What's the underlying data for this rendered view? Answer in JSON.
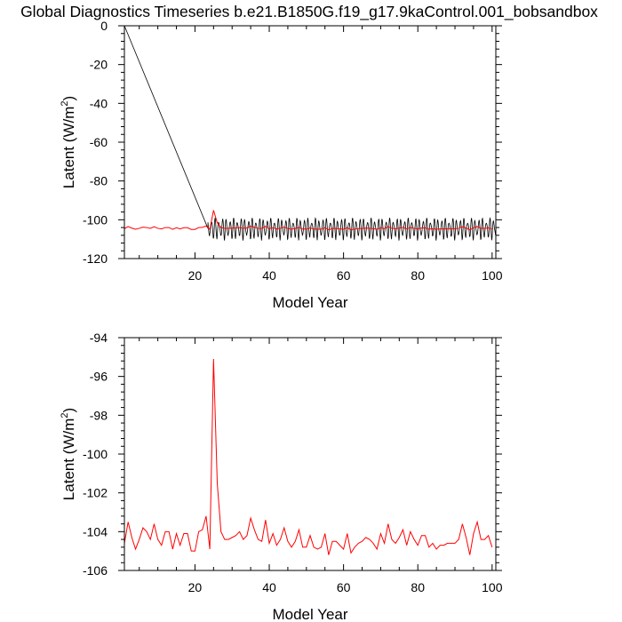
{
  "title": "Global Diagnostics Timeseries b.e21.B1850G.f19_g17.9kaControl.001_bobsandbox",
  "colors": {
    "monthly": "#000000",
    "annual": "#ff0000",
    "axis": "#000000"
  },
  "chart_data": [
    {
      "type": "line",
      "xlabel": "Model Year",
      "ylabel_main": "Latent (W/m",
      "ylabel_sup": "2",
      "ylabel_close": ")",
      "xlim": [
        1,
        101
      ],
      "ylim": [
        -120,
        0
      ],
      "xticks": [
        20,
        40,
        60,
        80,
        100
      ],
      "yticks": [
        0,
        -20,
        -40,
        -60,
        -80,
        -100,
        -120
      ],
      "grid": false,
      "series": [
        {
          "color": "#000000",
          "style": "monthly",
          "seasonal_cycle": [
            -100.9,
            -102.2,
            -104.0,
            -105.8,
            -107.6,
            -109.3,
            -108.5,
            -106.9,
            -104.6,
            -102.4,
            -101.0,
            -100.4
          ],
          "outlier": {
            "from": [
              1,
              0
            ],
            "to": [
              23.5,
              -104.5
            ]
          },
          "x_start": 1,
          "x_end": 101
        },
        {
          "color": "#ff0000",
          "style": "annual",
          "x": [
            1,
            2,
            3,
            4,
            5,
            6,
            7,
            8,
            9,
            10,
            11,
            12,
            13,
            14,
            15,
            16,
            17,
            18,
            19,
            20,
            21,
            22,
            23,
            24,
            25,
            26,
            27,
            28,
            29,
            30,
            31,
            32,
            33,
            34,
            35,
            36,
            37,
            38,
            39,
            40,
            41,
            42,
            43,
            44,
            45,
            46,
            47,
            48,
            49,
            50,
            51,
            52,
            53,
            54,
            55,
            56,
            57,
            58,
            59,
            60,
            61,
            62,
            63,
            64,
            65,
            66,
            67,
            68,
            69,
            70,
            71,
            72,
            73,
            74,
            75,
            76,
            77,
            78,
            79,
            80,
            81,
            82,
            83,
            84,
            85,
            86,
            87,
            88,
            89,
            90,
            91,
            92,
            93,
            94,
            95,
            96,
            97,
            98,
            99,
            100
          ],
          "y": [
            -104.6,
            -103.5,
            -104.3,
            -104.9,
            -104.4,
            -103.8,
            -104.0,
            -104.4,
            -103.6,
            -104.4,
            -104.7,
            -104.0,
            -104.0,
            -104.9,
            -104.1,
            -104.7,
            -104.1,
            -104.1,
            -105.0,
            -105.0,
            -104.0,
            -103.9,
            -103.2,
            -104.9,
            -95.1,
            -101.5,
            -104.0,
            -104.4,
            -104.4,
            -104.3,
            -104.2,
            -104.0,
            -104.4,
            -104.2,
            -103.3,
            -103.9,
            -104.4,
            -104.5,
            -103.4,
            -104.6,
            -104.1,
            -104.7,
            -104.4,
            -103.8,
            -104.5,
            -104.8,
            -104.5,
            -103.9,
            -104.8,
            -104.8,
            -104.2,
            -104.8,
            -104.9,
            -104.8,
            -104.1,
            -105.2,
            -104.5,
            -104.5,
            -104.7,
            -104.9,
            -104.1,
            -105.1,
            -104.8,
            -104.6,
            -104.5,
            -104.3,
            -104.4,
            -104.6,
            -104.9,
            -104.1,
            -104.6,
            -103.6,
            -104.4,
            -104.6,
            -104.3,
            -103.9,
            -104.7,
            -104.0,
            -104.4,
            -104.7,
            -104.2,
            -104.2,
            -104.8,
            -104.6,
            -104.9,
            -104.7,
            -104.7,
            -104.6,
            -104.6,
            -104.6,
            -104.4,
            -103.6,
            -104.3,
            -105.2,
            -104.1,
            -103.5,
            -104.4,
            -104.4,
            -104.2,
            -104.8
          ]
        }
      ]
    },
    {
      "type": "line",
      "xlabel": "Model Year",
      "ylabel_main": "Latent (W/m",
      "ylabel_sup": "2",
      "ylabel_close": ")",
      "xlim": [
        1,
        101
      ],
      "ylim": [
        -106,
        -94
      ],
      "xticks": [
        20,
        40,
        60,
        80,
        100
      ],
      "yticks": [
        -94,
        -96,
        -98,
        -100,
        -102,
        -104,
        -106
      ],
      "grid": false,
      "series": [
        {
          "color": "#ff0000",
          "x": [
            1,
            2,
            3,
            4,
            5,
            6,
            7,
            8,
            9,
            10,
            11,
            12,
            13,
            14,
            15,
            16,
            17,
            18,
            19,
            20,
            21,
            22,
            23,
            24,
            25,
            26,
            27,
            28,
            29,
            30,
            31,
            32,
            33,
            34,
            35,
            36,
            37,
            38,
            39,
            40,
            41,
            42,
            43,
            44,
            45,
            46,
            47,
            48,
            49,
            50,
            51,
            52,
            53,
            54,
            55,
            56,
            57,
            58,
            59,
            60,
            61,
            62,
            63,
            64,
            65,
            66,
            67,
            68,
            69,
            70,
            71,
            72,
            73,
            74,
            75,
            76,
            77,
            78,
            79,
            80,
            81,
            82,
            83,
            84,
            85,
            86,
            87,
            88,
            89,
            90,
            91,
            92,
            93,
            94,
            95,
            96,
            97,
            98,
            99,
            100
          ],
          "y": [
            -104.6,
            -103.5,
            -104.3,
            -104.9,
            -104.4,
            -103.8,
            -104.0,
            -104.4,
            -103.6,
            -104.4,
            -104.7,
            -104.0,
            -104.0,
            -104.9,
            -104.1,
            -104.7,
            -104.1,
            -104.1,
            -105.0,
            -105.0,
            -104.0,
            -103.9,
            -103.2,
            -104.9,
            -95.1,
            -101.5,
            -104.0,
            -104.4,
            -104.4,
            -104.3,
            -104.2,
            -104.0,
            -104.4,
            -104.2,
            -103.3,
            -103.9,
            -104.4,
            -104.5,
            -103.4,
            -104.6,
            -104.1,
            -104.7,
            -104.4,
            -103.8,
            -104.5,
            -104.8,
            -104.5,
            -103.9,
            -104.8,
            -104.8,
            -104.2,
            -104.8,
            -104.9,
            -104.8,
            -104.1,
            -105.2,
            -104.5,
            -104.5,
            -104.7,
            -104.9,
            -104.1,
            -105.1,
            -104.8,
            -104.6,
            -104.5,
            -104.3,
            -104.4,
            -104.6,
            -104.9,
            -104.1,
            -104.6,
            -103.6,
            -104.4,
            -104.6,
            -104.3,
            -103.9,
            -104.7,
            -104.0,
            -104.4,
            -104.7,
            -104.2,
            -104.2,
            -104.8,
            -104.6,
            -104.9,
            -104.7,
            -104.7,
            -104.6,
            -104.6,
            -104.6,
            -104.4,
            -103.6,
            -104.3,
            -105.2,
            -104.1,
            -103.5,
            -104.4,
            -104.4,
            -104.2,
            -104.8
          ]
        }
      ]
    }
  ]
}
